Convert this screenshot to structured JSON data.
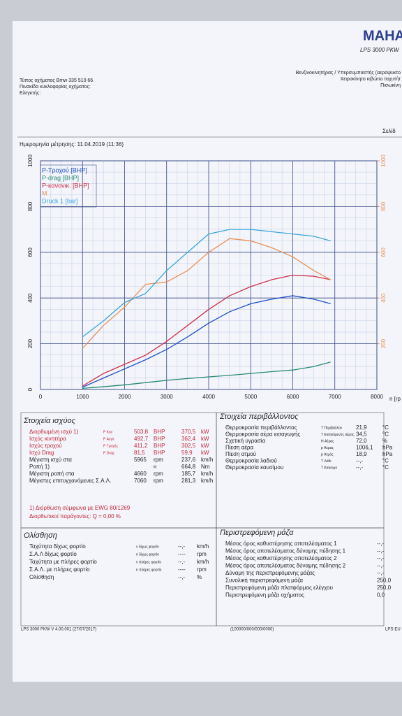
{
  "header": {
    "brand": "MAHA",
    "model": "LPS 3000 PKW",
    "left": [
      "Τύπος οχήματος Bmw 335 510 66",
      "Πινακίδα κυκλοφορίας οχήματος:",
      "Ελεγκτής:"
    ],
    "right": [
      "Βενζινοκινητήρας / Υπερσυμπιεστής (αεροψυκτο",
      "Χειροκίνητο κιβώτιο ταχυτήτ",
      "Πισωκίνη"
    ],
    "page": "Σελίδ",
    "date": "Ημερομηνία μέτρησης: 11.04.2019 (11:36)"
  },
  "chart_data": {
    "type": "line",
    "x_label": "n [rp",
    "x": [
      1000,
      1500,
      2000,
      2500,
      3000,
      3500,
      4000,
      4500,
      5000,
      5500,
      6000,
      6500,
      6900
    ],
    "series": [
      {
        "name": "P-Τροχού [BHP]",
        "color": "#1f4fc8",
        "values": [
          10,
          50,
          90,
          130,
          175,
          230,
          290,
          340,
          375,
          395,
          410,
          395,
          375
        ]
      },
      {
        "name": "P-drag [BHP]",
        "color": "#2a8a78",
        "values": [
          5,
          12,
          20,
          30,
          40,
          48,
          55,
          62,
          70,
          78,
          85,
          100,
          120
        ]
      },
      {
        "name": "P-κανονικ. [BHP]",
        "color": "#d0304a",
        "values": [
          15,
          70,
          110,
          150,
          210,
          280,
          350,
          410,
          450,
          480,
          500,
          495,
          480
        ]
      },
      {
        "name": "M",
        "color": "#e8915a",
        "axis": "y2",
        "values": [
          180,
          280,
          360,
          460,
          470,
          520,
          600,
          660,
          650,
          620,
          580,
          520,
          480
        ]
      },
      {
        "name": "Druck 1 [bar]",
        "color": "#3aa6e0",
        "values": [
          230,
          300,
          380,
          420,
          520,
          600,
          680,
          700,
          700,
          690,
          680,
          670,
          650
        ]
      }
    ],
    "xlim": [
      0,
      8000
    ],
    "xticks": [
      0,
      1000,
      2000,
      3000,
      4000,
      5000,
      6000,
      7000,
      8000
    ],
    "ylim": [
      0,
      1000
    ],
    "yticks": [
      0,
      200,
      400,
      600,
      800,
      1000
    ],
    "y2lim": [
      0,
      1000
    ],
    "y2ticks": [
      200,
      400,
      600,
      800,
      1000
    ],
    "y2color": "#e8915a",
    "grid": true,
    "legend": "upper left"
  },
  "power": {
    "title": "Στοιχεία ισχύος",
    "rows": [
      [
        "Διορθωμένη ισχύ 1)",
        "P Καν",
        "503,8",
        "BHP",
        "370,5",
        "kW"
      ],
      [
        "Ισχύς κινητήρα",
        "P Αγγλ",
        "492,7",
        "BHP",
        "362,4",
        "kW"
      ],
      [
        "Ισχύς τροχού",
        "P Τροχός",
        "411,2",
        "BHP",
        "302,5",
        "kW"
      ],
      [
        "Ισχύ Drag",
        "P Drag",
        "81,5",
        "BHP",
        "59,9",
        "kW"
      ],
      [
        "Μέγιστη ισχύ στα",
        "5965",
        "rpm",
        "237,6",
        "km/h"
      ],
      [
        "Ροπή 1)",
        "M",
        "664,8",
        "Nm"
      ],
      [
        "Μέγιστη ροπή στα",
        "4660",
        "rpm",
        "185,7",
        "km/h"
      ],
      [
        "Μέγιστες επιτυγχανόμενες Σ.Α.Λ.",
        "7060",
        "rpm",
        "281,3",
        "km/h"
      ]
    ],
    "notes": [
      "1) Διόρθωση σύμφωνα με EWG 80/1269",
      "Διορθωτικοί παράγοντες: Q = 0,00 %"
    ]
  },
  "environment": {
    "title": "Στοιχεία περιβάλλοντος",
    "rows": [
      [
        "Θερμοκρασία περιβάλλοντος",
        "T Περιβάλλον",
        "21,9",
        "°C"
      ],
      [
        "Θερμοκρασία αέρα εισαγωγής",
        "T Εισαγόμενος αέρας",
        "34,5",
        "°C"
      ],
      [
        "Σχετική υγρασία",
        "H Αέρας",
        "72,0",
        "%"
      ],
      [
        "Πίεση αέρα",
        "p Αέρας",
        "1006,1",
        "hPa"
      ],
      [
        "Πίεση ατμού",
        "p Ατμός",
        "18,9",
        "hPa"
      ],
      [
        "Θερμοκρασία λαδιού",
        "T Λάδι",
        "--,-",
        "°C"
      ],
      [
        "Θερμοκρασία καυσίμου",
        "T Καύσιμο",
        "--,-",
        "°C"
      ]
    ]
  },
  "slip": {
    "title": "Ολίσθηση",
    "rows": [
      [
        "Ταχύτητα δίχως φορτίο",
        "v δίχως φορτίο",
        "--,-",
        "km/h"
      ],
      [
        "Σ.Α.Λ δίχως φορτίο",
        "n δίχως φορτίο",
        "----",
        "rpm"
      ],
      [
        "Ταχύτητα με πλήρες φορτίο",
        "v πλήρες φορτίο",
        "--,-",
        "km/h"
      ],
      [
        "Σ.Α.Λ. με πλήρες φορτίο",
        "n πλήρες φορτίο",
        "----",
        "rpm"
      ],
      [
        "Ολίσθηση",
        "--,-",
        "%"
      ]
    ]
  },
  "mass": {
    "title": "Περιστρεφόμενη μάζα",
    "rows": [
      [
        "Μέσος όρος καθυστέρησης αποτελέσματος 1",
        "--,-"
      ],
      [
        "Μέσος όρος αποτελέσματος δύναμης πέδησης 1",
        "--,-"
      ],
      [
        "Μέσος όρος καθυστέρησης αποτελέσματος 2",
        "--,-"
      ],
      [
        "Μέσος όρος αποτελέσματος δύναμης πέδησης 2",
        "--,-"
      ],
      [
        "Δύναμη της περιστρεφόμενης μάζας",
        "--,-"
      ],
      [
        "Συνολική περιστρεφόμενη μάζα",
        "250,0"
      ],
      [
        "Περιστρεφόμενη μάζα πλατφόρμας ελέγχου",
        "250,0"
      ],
      [
        "Περιστρεφόμενη μάζα οχήματος",
        "0,0"
      ]
    ]
  },
  "footer": [
    "LPS 3000 PKW V 4.00.001 (27/07/2017)",
    "(100000/000/000/0000)",
    "LPS-EU"
  ]
}
